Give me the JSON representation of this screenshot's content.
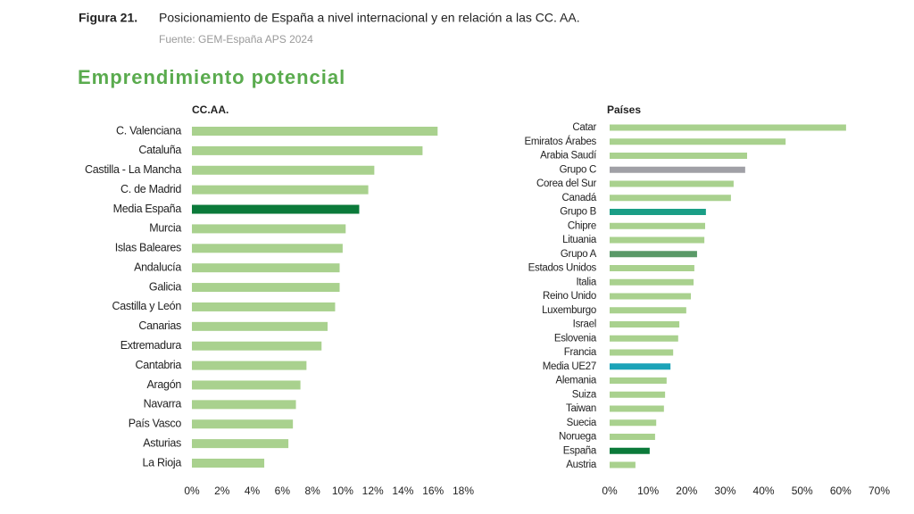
{
  "figure": {
    "label": "Figura 21.",
    "title": "Posicionamiento de España a nivel internacional y en relación a las CC. AA.",
    "source": "Fuente: GEM-España APS 2024"
  },
  "heading": "Emprendimiento potencial",
  "chart_data": [
    {
      "type": "bar",
      "orientation": "horizontal",
      "subtitle": "CC.AA.",
      "categories": [
        "C. Valenciana",
        "Cataluña",
        "Castilla - La Mancha",
        "C. de Madrid",
        "Media España",
        "Murcia",
        "Islas Baleares",
        "Andalucía",
        "Galicia",
        "Castilla y León",
        "Canarias",
        "Extremadura",
        "Cantabria",
        "Aragón",
        "Navarra",
        "País Vasco",
        "Asturias",
        "La Rioja"
      ],
      "values": [
        16.3,
        15.3,
        12.1,
        11.7,
        11.1,
        10.2,
        10.0,
        9.8,
        9.8,
        9.5,
        9.0,
        8.6,
        7.6,
        7.2,
        6.9,
        6.7,
        6.4,
        4.8
      ],
      "colors": [
        "#a9d18e",
        "#a9d18e",
        "#a9d18e",
        "#a9d18e",
        "#0b7a3a",
        "#a9d18e",
        "#a9d18e",
        "#a9d18e",
        "#a9d18e",
        "#a9d18e",
        "#a9d18e",
        "#a9d18e",
        "#a9d18e",
        "#a9d18e",
        "#a9d18e",
        "#a9d18e",
        "#a9d18e",
        "#a9d18e"
      ],
      "xlim": [
        0,
        18
      ],
      "xticks": [
        {
          "value": 0,
          "label": "0%"
        },
        {
          "value": 2,
          "label": "2%"
        },
        {
          "value": 4,
          "label": "4%"
        },
        {
          "value": 6,
          "label": "6%"
        },
        {
          "value": 8,
          "label": "8%"
        },
        {
          "value": 10,
          "label": "10%"
        },
        {
          "value": 12,
          "label": "12%"
        },
        {
          "value": 14,
          "label": "14%"
        },
        {
          "value": 16,
          "label": "16%"
        },
        {
          "value": 18,
          "label": "18%"
        }
      ]
    },
    {
      "type": "bar",
      "orientation": "horizontal",
      "subtitle": "Países",
      "categories": [
        "Catar",
        "Emiratos Árabes",
        "Arabia Saudí",
        "Grupo C",
        "Corea del Sur",
        "Canadá",
        "Grupo B",
        "Chipre",
        "Lituania",
        "Grupo A",
        "Estados Unidos",
        "Italia",
        "Reino Unido",
        "Luxemburgo",
        "Israel",
        "Eslovenia",
        "Francia",
        "Media UE27",
        "Alemania",
        "Suiza",
        "Taiwan",
        "Suecia",
        "Noruega",
        "España",
        "Austria"
      ],
      "values": [
        61.4,
        45.7,
        35.7,
        35.2,
        32.2,
        31.5,
        25.0,
        24.8,
        24.6,
        22.7,
        22.0,
        21.8,
        21.1,
        19.9,
        18.1,
        17.8,
        16.5,
        15.8,
        14.8,
        14.4,
        14.1,
        12.1,
        11.8,
        10.4,
        6.7
      ],
      "colors": [
        "#a9d18e",
        "#a9d18e",
        "#a9d18e",
        "#a0a0a6",
        "#a9d18e",
        "#a9d18e",
        "#1a9e86",
        "#a9d18e",
        "#a9d18e",
        "#5a9a68",
        "#a9d18e",
        "#a9d18e",
        "#a9d18e",
        "#a9d18e",
        "#a9d18e",
        "#a9d18e",
        "#a9d18e",
        "#1ba3b8",
        "#a9d18e",
        "#a9d18e",
        "#a9d18e",
        "#a9d18e",
        "#a9d18e",
        "#0b7a3a",
        "#a9d18e"
      ],
      "xlim": [
        0,
        70
      ],
      "xticks": [
        {
          "value": 0,
          "label": "0%"
        },
        {
          "value": 10,
          "label": "10%"
        },
        {
          "value": 20,
          "label": "20%"
        },
        {
          "value": 30,
          "label": "30%"
        },
        {
          "value": 40,
          "label": "40%"
        },
        {
          "value": 50,
          "label": "50%"
        },
        {
          "value": 60,
          "label": "60%"
        },
        {
          "value": 70,
          "label": "70%"
        }
      ]
    }
  ]
}
